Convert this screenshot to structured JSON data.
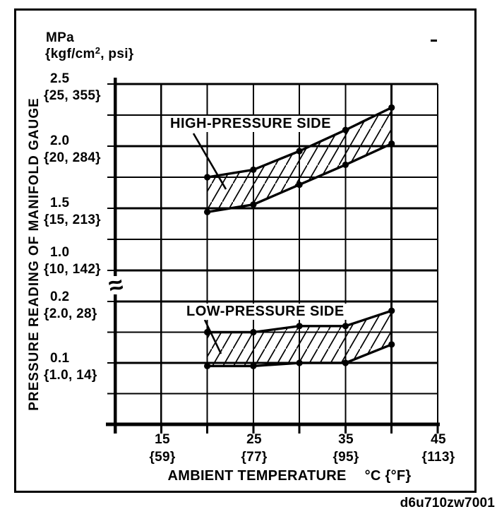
{
  "figure": {
    "code": "d6u710zw7001"
  },
  "chart_data": {
    "type": "area",
    "x_axis": {
      "label": "AMBIENT TEMPERATURE",
      "unit": "°C {°F}",
      "min_c": 10,
      "max_c": 45,
      "grid_step_c": 5,
      "ticks": [
        {
          "value": 15,
          "c": "15",
          "f": "{59}"
        },
        {
          "value": 25,
          "c": "25",
          "f": "{77}"
        },
        {
          "value": 35,
          "c": "35",
          "f": "{95}"
        },
        {
          "value": 45,
          "c": "45",
          "f": "{113}"
        }
      ]
    },
    "y_axis": {
      "label": "PRESSURE READING OF MANIFOLD GAUGE",
      "unit_line1": "MPa",
      "unit_pre": "{kgf/cm",
      "unit_sup": "2",
      "unit_post": ", psi}",
      "break_symbol": "≈",
      "upper_scale": {
        "min": 1.0,
        "max": 2.5,
        "step": 0.25
      },
      "lower_scale": {
        "min": 0.0,
        "max": 0.2,
        "step": 0.05
      },
      "ticks": [
        {
          "value": 2.5,
          "scale": "upper",
          "mpa": "2.5",
          "alt": "{25, 355}"
        },
        {
          "value": 2.0,
          "scale": "upper",
          "mpa": "2.0",
          "alt": "{20, 284}"
        },
        {
          "value": 1.5,
          "scale": "upper",
          "mpa": "1.5",
          "alt": "{15, 213}"
        },
        {
          "value": 1.0,
          "scale": "upper",
          "mpa": "1.0",
          "alt": "{10, 142}"
        },
        {
          "value": 0.2,
          "scale": "lower",
          "mpa": "0.2",
          "alt": "{2.0, 28}"
        },
        {
          "value": 0.1,
          "scale": "lower",
          "mpa": "0.1",
          "alt": "{1.0, 14}"
        }
      ]
    },
    "bands": [
      {
        "name": "HIGH-PRESSURE SIDE",
        "scale": "upper",
        "x_c": [
          20,
          25,
          30,
          35,
          40
        ],
        "upper_mpa": [
          1.75,
          1.81,
          1.96,
          2.13,
          2.31
        ],
        "lower_mpa": [
          1.47,
          1.53,
          1.69,
          1.85,
          2.02
        ]
      },
      {
        "name": "LOW-PRESSURE SIDE",
        "scale": "lower",
        "x_c": [
          20,
          25,
          30,
          35,
          40
        ],
        "upper_mpa": [
          0.15,
          0.15,
          0.16,
          0.16,
          0.185
        ],
        "lower_mpa": [
          0.095,
          0.095,
          0.1,
          0.1,
          0.13
        ]
      }
    ],
    "ink_color": "#000000",
    "background_color": "#ffffff"
  }
}
